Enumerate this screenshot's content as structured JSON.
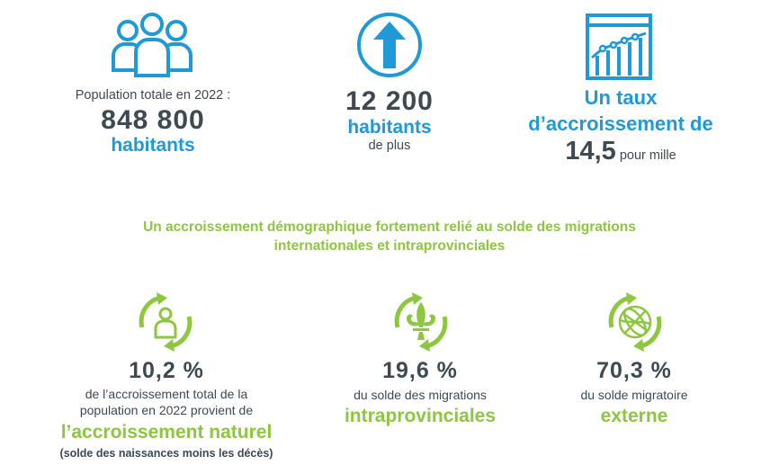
{
  "colors": {
    "blue": "#1f9ad6",
    "green": "#8dc63f",
    "dark": "#3d4a52"
  },
  "population": {
    "icon": "people-icon",
    "label": "Population totale en 2022 :",
    "value": "848 800",
    "unit": "habitants"
  },
  "increase": {
    "icon": "up-arrow-icon",
    "value": "12 200",
    "unit": "habitants",
    "sub": "de plus"
  },
  "rate": {
    "icon": "growth-chart-icon",
    "line1": "Un taux",
    "line2": "d’accroissement de",
    "value": "14,5",
    "unit": "pour mille"
  },
  "subtitle": {
    "line1": "Un accroissement démographique fortement relié au solde des migrations",
    "line2": "internationales et intraprovinciales"
  },
  "natural": {
    "icon": "person-cycle-icon",
    "value": "10,2 %",
    "desc1": "de l’accroissement total de la",
    "desc2": "population en 2022 provient de",
    "emphasis": "l’accroissement naturel",
    "note": "(solde des naissances moins les décès)"
  },
  "intra": {
    "icon": "fleur-de-lys-cycle-icon",
    "value": "19,6 %",
    "desc1": "du solde des migrations",
    "emphasis": "intraprovinciales"
  },
  "external": {
    "icon": "globe-cycle-icon",
    "value": "70,3 %",
    "desc1": "du solde migratoire",
    "emphasis": "externe"
  }
}
